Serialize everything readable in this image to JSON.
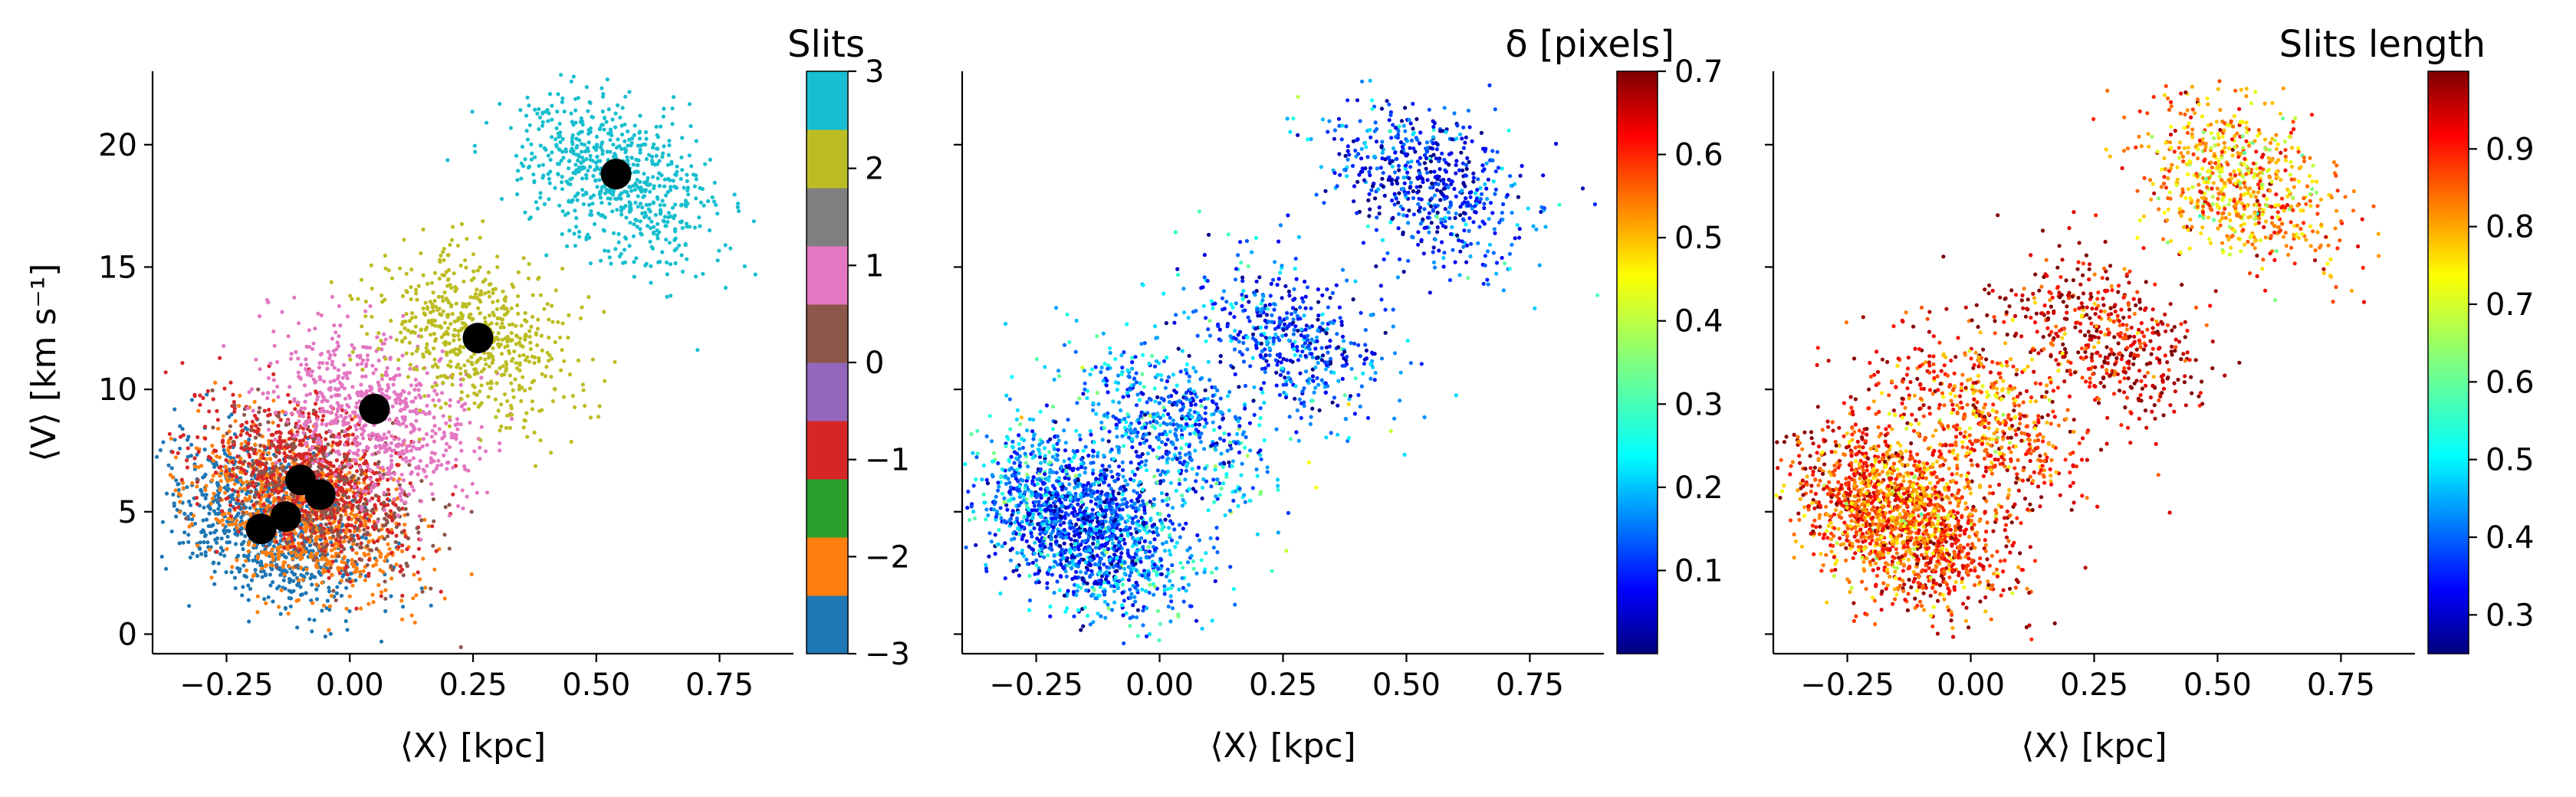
{
  "chart_data": [
    {
      "type": "scatter",
      "panel": "left",
      "xlabel": "⟨X⟩ [kpc]",
      "ylabel": "⟨V⟩ [km s⁻¹]",
      "xlim": [
        -0.4,
        0.9
      ],
      "ylim": [
        -0.8,
        23
      ],
      "xticks": [
        -0.25,
        0.0,
        0.25,
        0.5,
        0.75
      ],
      "xtick_labels": [
        "−0.25",
        "0.00",
        "0.25",
        "0.50",
        "0.75"
      ],
      "yticks": [
        0,
        5,
        10,
        15,
        20
      ],
      "ytick_labels": [
        "0",
        "5",
        "10",
        "15",
        "20"
      ],
      "grid": false,
      "colorbar": {
        "title": "Slits",
        "type": "discrete",
        "range": [
          -3,
          3
        ],
        "ticks": [
          -3,
          -2,
          -1,
          0,
          1,
          2,
          3
        ],
        "tick_labels": [
          "−3",
          "−2",
          "−1",
          "0",
          "1",
          "2",
          "3"
        ],
        "colors": [
          "#1f77b4",
          "#ff7f0e",
          "#2ca02c",
          "#d62728",
          "#9467bd",
          "#8c564b",
          "#e377c2",
          "#7f7f7f",
          "#bcbd22",
          "#17becf"
        ]
      },
      "clusters": [
        {
          "slit_index": 0,
          "x": -0.16,
          "y": 4.5,
          "count": 900
        },
        {
          "slit_index": 1,
          "x": -0.1,
          "y": 5.0,
          "count": 900
        },
        {
          "slit_index": 3,
          "x": -0.08,
          "y": 6.3,
          "count": 800
        },
        {
          "slit_index": 5,
          "x": -0.05,
          "y": 5.8,
          "count": 350
        },
        {
          "slit_index": 6,
          "x": 0.05,
          "y": 9.0,
          "count": 700
        },
        {
          "slit_index": 8,
          "x": 0.26,
          "y": 12.2,
          "count": 600
        },
        {
          "slit_index": 9,
          "x": 0.54,
          "y": 18.6,
          "count": 700
        }
      ],
      "centroids": [
        {
          "x": -0.18,
          "y": 4.3
        },
        {
          "x": -0.13,
          "y": 4.8
        },
        {
          "x": -0.1,
          "y": 6.3
        },
        {
          "x": -0.06,
          "y": 5.7
        },
        {
          "x": 0.05,
          "y": 9.2
        },
        {
          "x": 0.26,
          "y": 12.1
        },
        {
          "x": 0.54,
          "y": 18.8
        }
      ]
    },
    {
      "type": "scatter",
      "panel": "middle",
      "xlabel": "⟨X⟩ [kpc]",
      "xlim": [
        -0.4,
        0.9
      ],
      "ylim": [
        -0.8,
        23
      ],
      "xticks": [
        -0.25,
        0.0,
        0.25,
        0.5,
        0.75
      ],
      "xtick_labels": [
        "−0.25",
        "0.00",
        "0.25",
        "0.50",
        "0.75"
      ],
      "yticks": [
        0,
        5,
        10,
        15,
        20
      ],
      "grid": false,
      "colorbar": {
        "title": "δ [pixels]",
        "colormap": "jet",
        "range": [
          0.0,
          0.7
        ],
        "ticks": [
          0.1,
          0.2,
          0.3,
          0.4,
          0.5,
          0.6,
          0.7
        ],
        "tick_labels": [
          "0.1",
          "0.2",
          "0.3",
          "0.4",
          "0.5",
          "0.6",
          "0.7"
        ]
      },
      "clusters": [
        {
          "x": -0.16,
          "y": 4.5,
          "count": 1600,
          "value_mean": 0.12
        },
        {
          "x": 0.02,
          "y": 8.5,
          "count": 600,
          "value_mean": 0.14
        },
        {
          "x": 0.26,
          "y": 12.0,
          "count": 500,
          "value_mean": 0.1
        },
        {
          "x": 0.54,
          "y": 18.5,
          "count": 600,
          "value_mean": 0.08
        }
      ]
    },
    {
      "type": "scatter",
      "panel": "right",
      "xlabel": "⟨X⟩ [kpc]",
      "xlim": [
        -0.4,
        0.9
      ],
      "ylim": [
        -0.8,
        23
      ],
      "xticks": [
        -0.25,
        0.0,
        0.25,
        0.5,
        0.75
      ],
      "xtick_labels": [
        "−0.25",
        "0.00",
        "0.25",
        "0.50",
        "0.75"
      ],
      "yticks": [
        0,
        5,
        10,
        15,
        20
      ],
      "grid": false,
      "colorbar": {
        "title": "Slits length",
        "colormap": "jet",
        "range": [
          0.25,
          1.0
        ],
        "ticks": [
          0.3,
          0.4,
          0.5,
          0.6,
          0.7,
          0.8,
          0.9
        ],
        "tick_labels": [
          "0.3",
          "0.4",
          "0.5",
          "0.6",
          "0.7",
          "0.8",
          "0.9"
        ]
      },
      "clusters": [
        {
          "x": -0.15,
          "y": 4.8,
          "count": 1700,
          "value_mean": 0.82
        },
        {
          "x": 0.02,
          "y": 8.8,
          "count": 600,
          "value_mean": 0.82
        },
        {
          "x": 0.26,
          "y": 12.3,
          "count": 500,
          "value_mean": 0.9
        },
        {
          "x": 0.54,
          "y": 18.5,
          "count": 700,
          "value_mean": 0.75
        }
      ]
    }
  ]
}
